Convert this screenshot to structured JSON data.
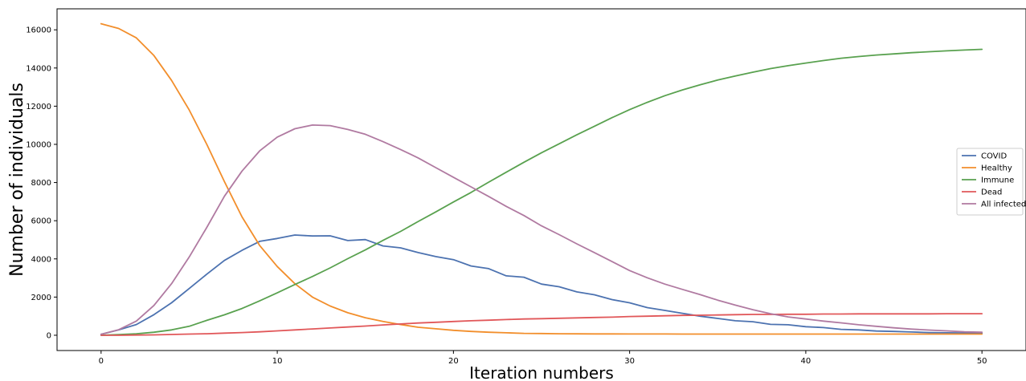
{
  "chart_data": {
    "type": "line",
    "title": "",
    "xlabel": "Iteration numbers",
    "ylabel": "Number of individuals",
    "xlim": [
      -2.5,
      52.5
    ],
    "ylim": [
      -800,
      17100
    ],
    "xticks": [
      0,
      10,
      20,
      30,
      40,
      50
    ],
    "yticks": [
      0,
      2000,
      4000,
      6000,
      8000,
      10000,
      12000,
      14000,
      16000
    ],
    "grid": false,
    "legend_position": "center-right",
    "x": [
      0,
      1,
      2,
      3,
      4,
      5,
      6,
      7,
      8,
      9,
      10,
      11,
      12,
      13,
      14,
      15,
      16,
      17,
      18,
      19,
      20,
      21,
      22,
      23,
      24,
      25,
      26,
      27,
      28,
      29,
      30,
      31,
      32,
      33,
      34,
      35,
      36,
      37,
      38,
      39,
      40,
      41,
      42,
      43,
      44,
      45,
      46,
      47,
      48,
      49,
      50
    ],
    "series": [
      {
        "name": "COVID",
        "color": "#4c72b0",
        "values": [
          50,
          280,
          560,
          1080,
          1700,
          2450,
          3200,
          3920,
          4450,
          4920,
          5070,
          5250,
          5200,
          5210,
          4960,
          5010,
          4680,
          4580,
          4330,
          4120,
          3960,
          3630,
          3490,
          3110,
          3040,
          2680,
          2540,
          2270,
          2120,
          1870,
          1700,
          1450,
          1300,
          1150,
          1000,
          880,
          760,
          710,
          570,
          550,
          450,
          400,
          310,
          280,
          220,
          200,
          170,
          140,
          130,
          120,
          110
        ]
      },
      {
        "name": "Healthy",
        "color": "#f28e2b",
        "values": [
          16320,
          16070,
          15580,
          14650,
          13350,
          11800,
          10000,
          8050,
          6200,
          4700,
          3600,
          2700,
          2000,
          1530,
          1180,
          920,
          720,
          560,
          420,
          340,
          260,
          200,
          160,
          130,
          100,
          90,
          80,
          75,
          70,
          70,
          65,
          65,
          65,
          60,
          60,
          60,
          60,
          60,
          60,
          60,
          60,
          60,
          60,
          60,
          60,
          60,
          60,
          60,
          60,
          60,
          60
        ]
      },
      {
        "name": "Immune",
        "color": "#59a14f",
        "values": [
          0,
          30,
          80,
          160,
          280,
          470,
          780,
          1070,
          1400,
          1800,
          2220,
          2660,
          3080,
          3530,
          4010,
          4470,
          4970,
          5440,
          5960,
          6460,
          6980,
          7480,
          8020,
          8540,
          9060,
          9560,
          10030,
          10500,
          10950,
          11400,
          11820,
          12200,
          12550,
          12850,
          13120,
          13370,
          13580,
          13780,
          13970,
          14120,
          14260,
          14390,
          14510,
          14600,
          14680,
          14740,
          14800,
          14850,
          14900,
          14940,
          14980
        ]
      },
      {
        "name": "Dead",
        "color": "#e15759",
        "values": [
          0,
          0,
          10,
          20,
          40,
          60,
          80,
          110,
          140,
          180,
          230,
          280,
          330,
          380,
          430,
          480,
          540,
          590,
          640,
          680,
          720,
          760,
          790,
          820,
          850,
          870,
          890,
          910,
          930,
          950,
          980,
          1000,
          1020,
          1040,
          1050,
          1060,
          1080,
          1090,
          1090,
          1100,
          1100,
          1110,
          1110,
          1120,
          1120,
          1120,
          1120,
          1120,
          1130,
          1130,
          1130
        ]
      },
      {
        "name": "All infected",
        "color": "#b07aa1",
        "values": [
          50,
          290,
          740,
          1560,
          2700,
          4100,
          5650,
          7280,
          8600,
          9660,
          10380,
          10820,
          11010,
          10980,
          10780,
          10530,
          10140,
          9730,
          9290,
          8780,
          8270,
          7770,
          7270,
          6750,
          6270,
          5730,
          5270,
          4790,
          4330,
          3860,
          3390,
          3010,
          2680,
          2400,
          2130,
          1840,
          1580,
          1340,
          1130,
          960,
          850,
          740,
          650,
          550,
          470,
          390,
          320,
          270,
          230,
          180,
          160
        ]
      }
    ]
  }
}
